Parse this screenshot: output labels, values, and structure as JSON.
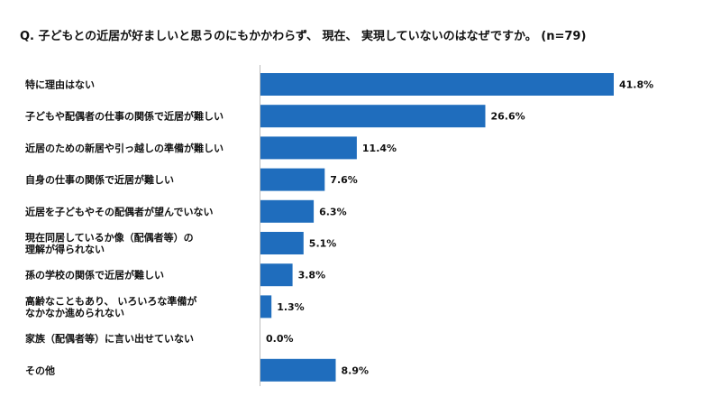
{
  "chart_data": {
    "type": "bar",
    "orientation": "horizontal",
    "title": "Q. 子どもとの近居が好ましいと思うのにもかかわらず、 現在、 実現していないのはなぜですか。 (n=79)",
    "unit": "%",
    "categories": [
      "特に理由はない",
      "子どもや配偶者の仕事の関係で近居が難しい",
      "近居のための新居や引っ越しの準備が難しい",
      "自身の仕事の関係で近居が難しい",
      "近居を子どもやその配偶者が望んでいない",
      "現在同居しているか像（配偶者等）の理解が得られない",
      "孫の学校の関係で近居が難しい",
      "高齢なこともあり、 いろいろな準備がなかなか進められない",
      "家族（配偶者等）に言い出せていない",
      "その他"
    ],
    "category_lines": [
      [
        "特に理由はない"
      ],
      [
        "子どもや配偶者の仕事の関係で近居が難しい"
      ],
      [
        "近居のための新居や引っ越しの準備が難しい"
      ],
      [
        "自身の仕事の関係で近居が難しい"
      ],
      [
        "近居を子どもやその配偶者が望んでいない"
      ],
      [
        "現在同居しているか像（配偶者等）の",
        "理解が得られない"
      ],
      [
        "孫の学校の関係で近居が難しい"
      ],
      [
        "高齢なこともあり、 いろいろな準備が",
        "なかなか進められない"
      ],
      [
        "家族（配偶者等）に言い出せていない"
      ],
      [
        "その他"
      ]
    ],
    "values": [
      41.8,
      26.6,
      11.4,
      7.6,
      6.3,
      5.1,
      3.8,
      1.3,
      0.0,
      8.9
    ],
    "value_labels": [
      "41.8%",
      "26.6%",
      "11.4%",
      "7.6%",
      "6.3%",
      "5.1%",
      "3.8%",
      "1.3%",
      "0.0%",
      "8.9%"
    ],
    "xlim": [
      0,
      41.8
    ],
    "grid": false,
    "legend": "none",
    "bar_color": "#1f6dbd"
  }
}
